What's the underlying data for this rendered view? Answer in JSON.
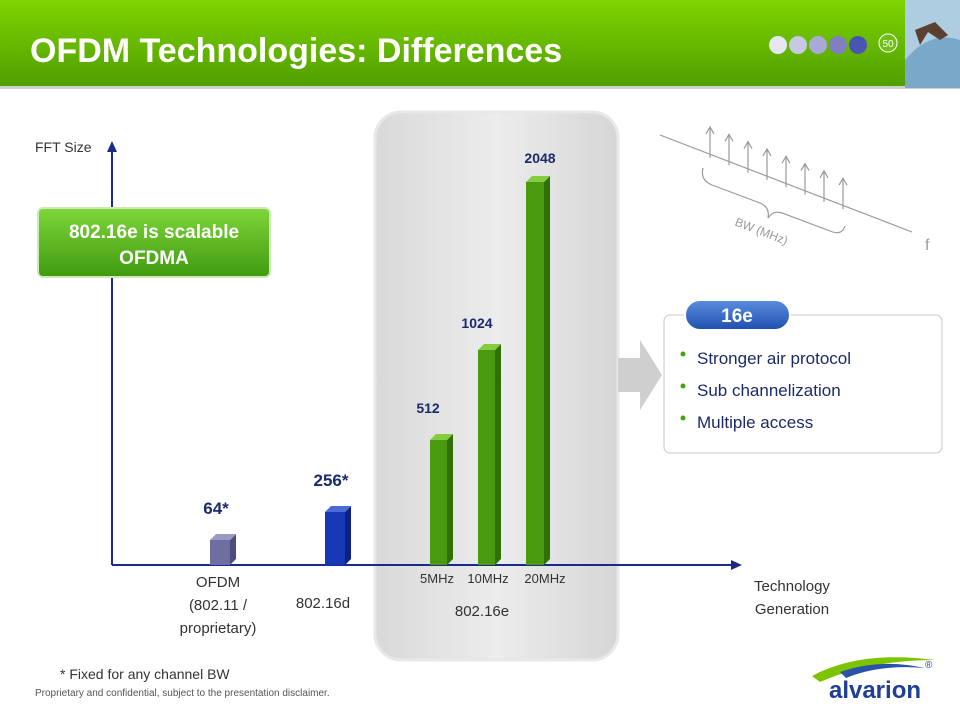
{
  "header": {
    "title": "OFDM Technologies: Differences",
    "page_number": "50"
  },
  "diagram": {
    "y_axis_label": "FFT Size",
    "x_axis_label": [
      "Technology",
      "Generation"
    ],
    "bars": [
      {
        "label": "64*"
      },
      {
        "label": "256*"
      },
      {
        "label": "512",
        "bandwidth": "5MHz"
      },
      {
        "label": "1024",
        "bandwidth": "10MHz"
      },
      {
        "label": "2048",
        "bandwidth": "20MHz"
      }
    ],
    "groups": [
      {
        "lines": [
          "OFDM",
          "(802.11 /",
          "proprietary)"
        ]
      },
      {
        "lines": [
          "802.16d"
        ]
      },
      {
        "lines": [
          "802.16e"
        ]
      }
    ],
    "callout": [
      "802.16e is scalable",
      "OFDMA"
    ],
    "spectrum": {
      "bandwidth_label": "BW (MHz)",
      "frequency_label": "f"
    }
  },
  "features": {
    "tag": "16e",
    "items": [
      "Stronger air protocol",
      "Sub channelization",
      "Multiple access"
    ]
  },
  "footnote": "* Fixed for any channel BW",
  "disclaimer": "Proprietary and confidential, subject to the presentation disclaimer.",
  "logo": {
    "brand": "alvarion",
    "mark": "®"
  }
}
